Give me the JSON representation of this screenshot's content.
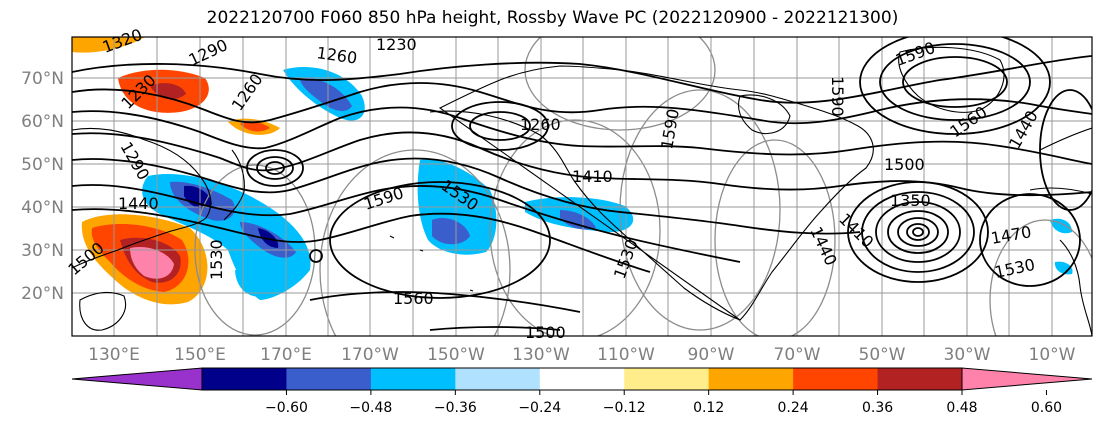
{
  "title": "2022120700 F060 850 hPa height, Rossby Wave PC (2022120900 - 2022121300)",
  "lat_ticks": [
    "70°N",
    "60°N",
    "50°N",
    "40°N",
    "30°N",
    "20°N"
  ],
  "lon_ticks": [
    "130°E",
    "150°E",
    "170°E",
    "170°W",
    "150°W",
    "130°W",
    "110°W",
    "90°W",
    "70°W",
    "50°W",
    "30°W",
    "10°W"
  ],
  "contour_labels": [
    {
      "text": "1320"
    },
    {
      "text": "1290"
    },
    {
      "text": "1260"
    },
    {
      "text": "1230"
    },
    {
      "text": "1230"
    },
    {
      "text": "1290"
    },
    {
      "text": "1260"
    },
    {
      "text": "1410"
    },
    {
      "text": "1590"
    },
    {
      "text": "1530"
    },
    {
      "text": "1590"
    },
    {
      "text": "1560"
    },
    {
      "text": "1440"
    },
    {
      "text": "1500"
    },
    {
      "text": "1350"
    },
    {
      "text": "1410"
    },
    {
      "text": "1440"
    },
    {
      "text": "1470"
    },
    {
      "text": "1530"
    },
    {
      "text": "1590"
    },
    {
      "text": "1530"
    },
    {
      "text": "1560"
    },
    {
      "text": "1500"
    },
    {
      "text": "1440"
    },
    {
      "text": "1500"
    },
    {
      "text": "1530"
    },
    {
      "text": "1590"
    },
    {
      "text": "1260"
    }
  ],
  "colorbar": {
    "colors": [
      "#9932cc",
      "#00008b",
      "#3a5fcd",
      "#00bfff",
      "#b0e2ff",
      "#ffffff",
      "#ffec8b",
      "#ffa500",
      "#ff4500",
      "#b22222",
      "#ff82ab"
    ],
    "labels": [
      "−0.60",
      "−0.48",
      "−0.36",
      "−0.24",
      "−0.12",
      "0.12",
      "0.24",
      "0.36",
      "0.48",
      "0.60"
    ]
  },
  "colors": {
    "contour": "#000000",
    "grid": "#999999",
    "coast": "#000000"
  }
}
